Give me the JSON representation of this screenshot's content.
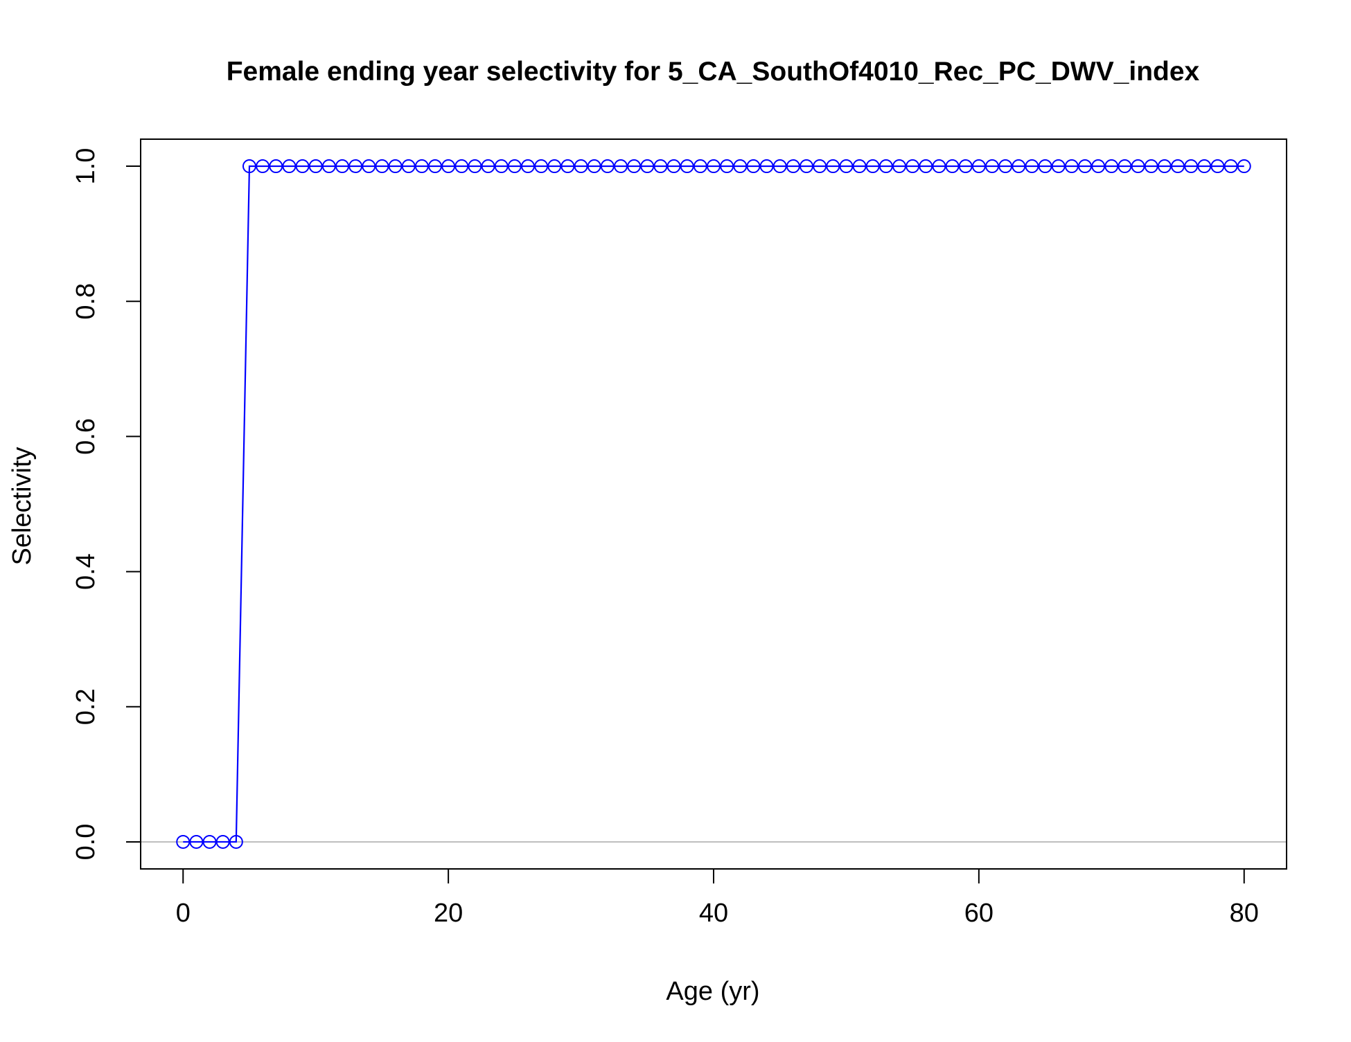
{
  "chart_data": {
    "type": "line",
    "title": "Female ending year selectivity for 5_CA_SouthOf4010_Rec_PC_DWV_index",
    "xlabel": "Age (yr)",
    "ylabel": "Selectivity",
    "xlim": [
      -3.2,
      83.2
    ],
    "ylim": [
      -0.04,
      1.04
    ],
    "x_ticks": [
      0,
      20,
      40,
      60,
      80
    ],
    "y_ticks": [
      0.0,
      0.2,
      0.4,
      0.6,
      0.8,
      1.0
    ],
    "x_tick_labels": [
      "0",
      "20",
      "40",
      "60",
      "80"
    ],
    "y_tick_labels": [
      "0.0",
      "0.2",
      "0.4",
      "0.6",
      "0.8",
      "1.0"
    ],
    "reference_line": {
      "y": 0,
      "color": "#bebebe"
    },
    "grid": false,
    "series": [
      {
        "color": "#0000ff",
        "marker": "open-circle",
        "x": [
          0,
          1,
          2,
          3,
          4,
          5,
          6,
          7,
          8,
          9,
          10,
          11,
          12,
          13,
          14,
          15,
          16,
          17,
          18,
          19,
          20,
          21,
          22,
          23,
          24,
          25,
          26,
          27,
          28,
          29,
          30,
          31,
          32,
          33,
          34,
          35,
          36,
          37,
          38,
          39,
          40,
          41,
          42,
          43,
          44,
          45,
          46,
          47,
          48,
          49,
          50,
          51,
          52,
          53,
          54,
          55,
          56,
          57,
          58,
          59,
          60,
          61,
          62,
          63,
          64,
          65,
          66,
          67,
          68,
          69,
          70,
          71,
          72,
          73,
          74,
          75,
          76,
          77,
          78,
          79,
          80
        ],
        "values": [
          0,
          0,
          0,
          0,
          0,
          1,
          1,
          1,
          1,
          1,
          1,
          1,
          1,
          1,
          1,
          1,
          1,
          1,
          1,
          1,
          1,
          1,
          1,
          1,
          1,
          1,
          1,
          1,
          1,
          1,
          1,
          1,
          1,
          1,
          1,
          1,
          1,
          1,
          1,
          1,
          1,
          1,
          1,
          1,
          1,
          1,
          1,
          1,
          1,
          1,
          1,
          1,
          1,
          1,
          1,
          1,
          1,
          1,
          1,
          1,
          1,
          1,
          1,
          1,
          1,
          1,
          1,
          1,
          1,
          1,
          1,
          1,
          1,
          1,
          1,
          1,
          1,
          1,
          1,
          1,
          1
        ]
      }
    ]
  }
}
